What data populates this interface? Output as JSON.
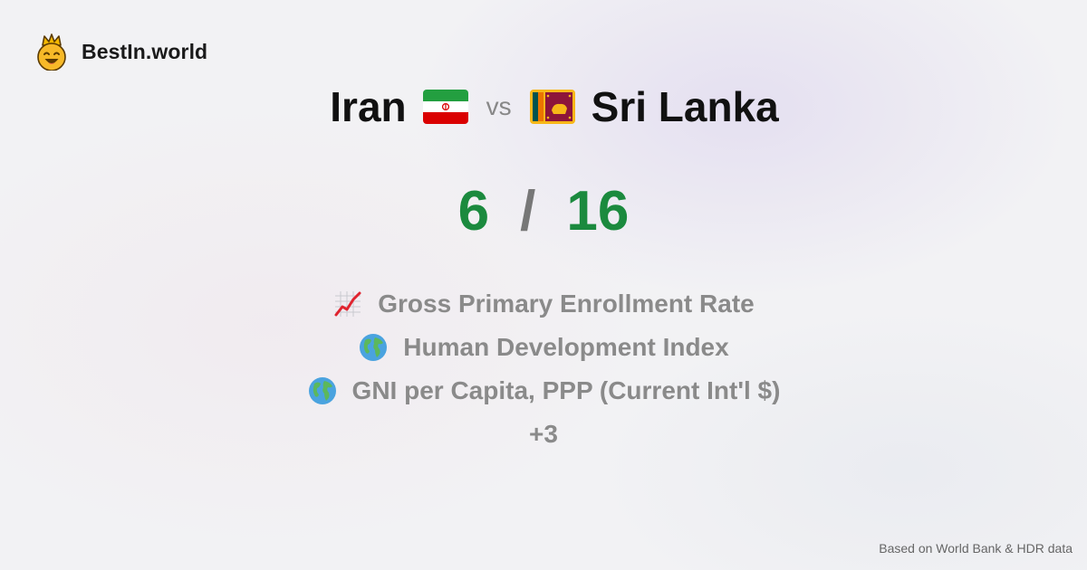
{
  "brand": {
    "name": "BestIn.world",
    "logo_icon": "smiling-crown-face-icon"
  },
  "comparison": {
    "left_country": "Iran",
    "left_flag_icon": "iran-flag-icon",
    "vs_label": "vs",
    "right_country": "Sri Lanka",
    "right_flag_icon": "sri-lanka-flag-icon"
  },
  "score": {
    "left": "6",
    "separator": "/",
    "right": "16",
    "color": "#1b8a3e"
  },
  "metrics": [
    {
      "icon": "chart-increasing-icon",
      "label": "Gross Primary Enrollment Rate"
    },
    {
      "icon": "globe-icon",
      "label": "Human Development Index"
    },
    {
      "icon": "globe-icon",
      "label": "GNI per Capita, PPP (Current Int'l $)"
    }
  ],
  "more_label": "+3",
  "footer": {
    "source_note": "Based on World Bank & HDR data"
  }
}
